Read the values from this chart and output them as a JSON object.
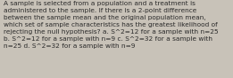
{
  "text_lines": [
    "A sample is selected from a population and a treatment is",
    "administered to the sample. If there is a 2-point difference",
    "between the sample mean and the original population mean,",
    "which set of sample characteristics has the greatest likelihood of",
    "rejecting the null hypothesis? a. S^2=12 for a sample with n=25",
    "b. S^2=12 for a sample with n=9 c. S^2=32 for a sample with",
    "n=25 d. S^2=32 for a sample with n=9"
  ],
  "background_color": "#c8c2b8",
  "text_color": "#2a2a2a",
  "font_size": 5.3,
  "fig_width": 2.61,
  "fig_height": 0.88,
  "dpi": 100
}
